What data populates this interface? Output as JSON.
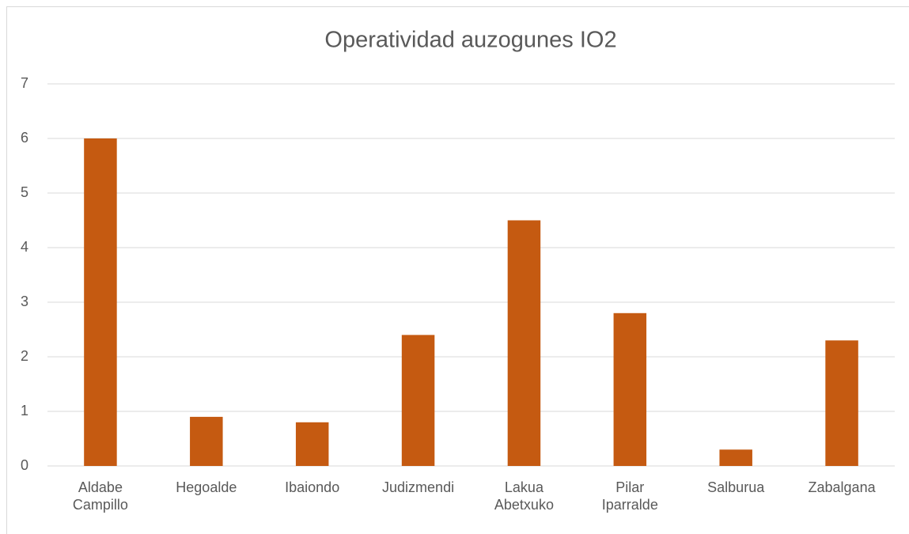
{
  "chart_data": {
    "type": "bar",
    "title": "Operatividad auzogunes IO2",
    "categories": [
      "Aldabe Campillo",
      "Hegoalde",
      "Ibaiondo",
      "Judizmendi",
      "Lakua Abetxuko",
      "Pilar Iparralde",
      "Salburua",
      "Zabalgana"
    ],
    "values": [
      6,
      0.9,
      0.8,
      2.4,
      4.5,
      2.8,
      0.3,
      2.3
    ],
    "color": "#c55a11",
    "ylim": [
      0,
      7
    ],
    "yticks": [
      0,
      1,
      2,
      3,
      4,
      5,
      6,
      7
    ],
    "grid": true
  }
}
